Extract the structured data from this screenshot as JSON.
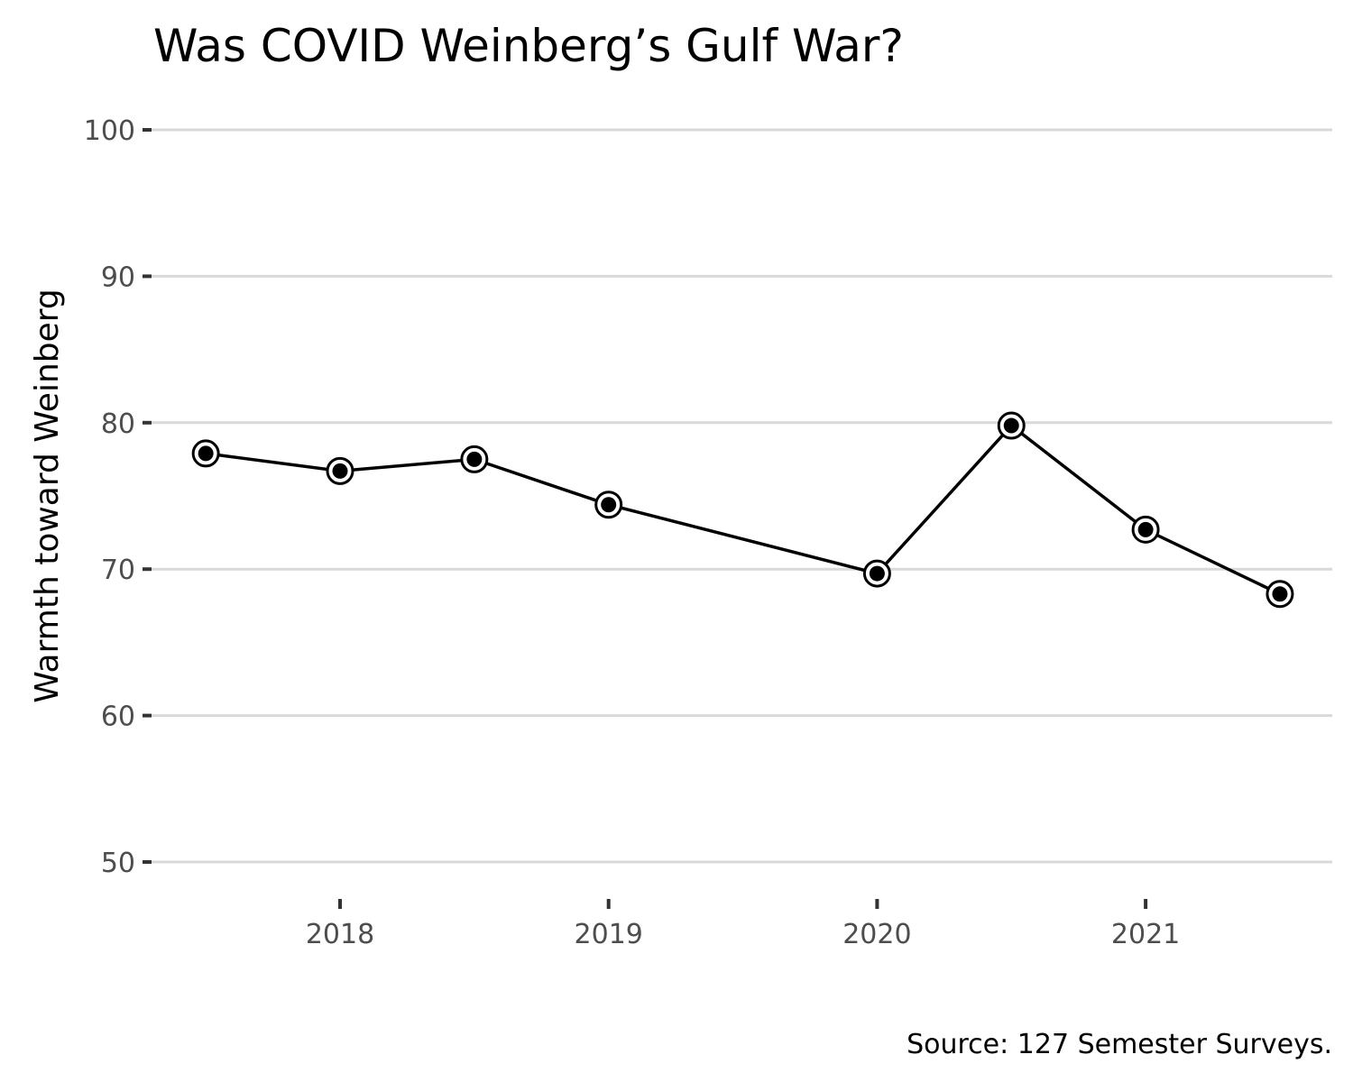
{
  "chart_data": {
    "type": "line",
    "title": "Was COVID Weinberg’s Gulf War?",
    "xlabel": "",
    "ylabel": "Warmth toward Weinberg",
    "caption": "Source: 127 Semester Surveys.",
    "x": [
      2017.5,
      2018.0,
      2018.5,
      2019.0,
      2020.0,
      2020.5,
      2021.0,
      2021.5
    ],
    "series": [
      {
        "name": "Warmth toward Weinberg",
        "values": [
          77.9,
          76.7,
          77.5,
          74.4,
          69.7,
          79.8,
          72.7,
          68.3
        ],
        "color": "#000000"
      }
    ],
    "ylim": [
      50,
      100
    ],
    "xlim": [
      2017.3,
      2021.7
    ],
    "y_ticks": [
      50,
      60,
      70,
      80,
      90,
      100
    ],
    "y_tick_labels": [
      "50",
      "60",
      "70",
      "80",
      "90",
      "100"
    ],
    "x_ticks": [
      2018,
      2019,
      2020,
      2021
    ],
    "x_tick_labels": [
      "2018",
      "2019",
      "2020",
      "2021"
    ],
    "grid": "horizontal-major",
    "legend": "none",
    "colors": {
      "grid": "#d9d9d9",
      "tick_label": "#4d4d4d",
      "line": "#000000",
      "marker_fill": "#000000",
      "marker_ring": "#ffffff"
    }
  }
}
